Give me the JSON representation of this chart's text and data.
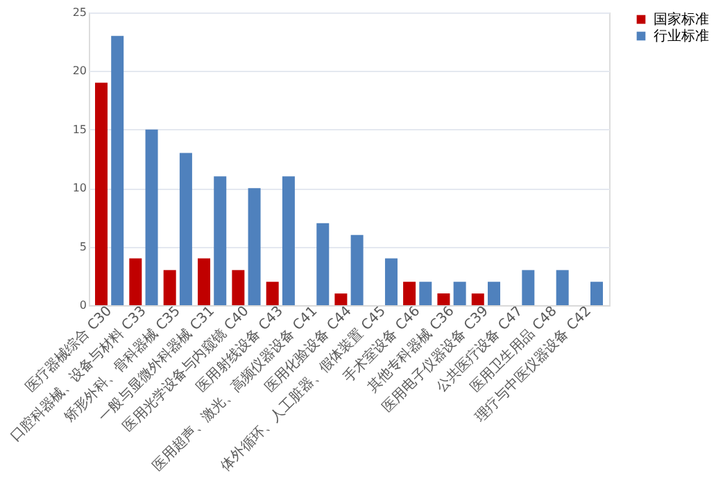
{
  "chart_data": {
    "type": "bar",
    "categories": [
      "医疗器械综合 C30",
      "口腔科器械、设备与材料 C33",
      "矫形外科、骨科器械 C35",
      "一般与显微外科器械 C31",
      "医用光学设备与内窥镜 C40",
      "医用射线设备 C43",
      "医用超声、激光、高频仪器设备 C41",
      "医用化验设备 C44",
      "体外循环、人工脏器、假体装置 C45",
      "手术室设备 C46",
      "其他专科器械 C36",
      "医用电子仪器设备 C39",
      "公共医疗设备 C47",
      "医用卫生用品 C48",
      "理疗与中医仪器设备 C42"
    ],
    "series": [
      {
        "name": "国家标准",
        "color": "#c00000",
        "values": [
          19,
          4,
          3,
          4,
          3,
          2,
          null,
          1,
          null,
          2,
          1,
          1,
          null,
          null,
          null
        ]
      },
      {
        "name": "行业标准",
        "color": "#4f81bd",
        "values": [
          23,
          15,
          13,
          11,
          10,
          11,
          7,
          6,
          4,
          2,
          2,
          2,
          3,
          3,
          2
        ]
      }
    ],
    "ylim": [
      0,
      25
    ],
    "yticks": [
      0,
      5,
      10,
      15,
      20,
      25
    ],
    "grid": "y",
    "legend": "right"
  }
}
